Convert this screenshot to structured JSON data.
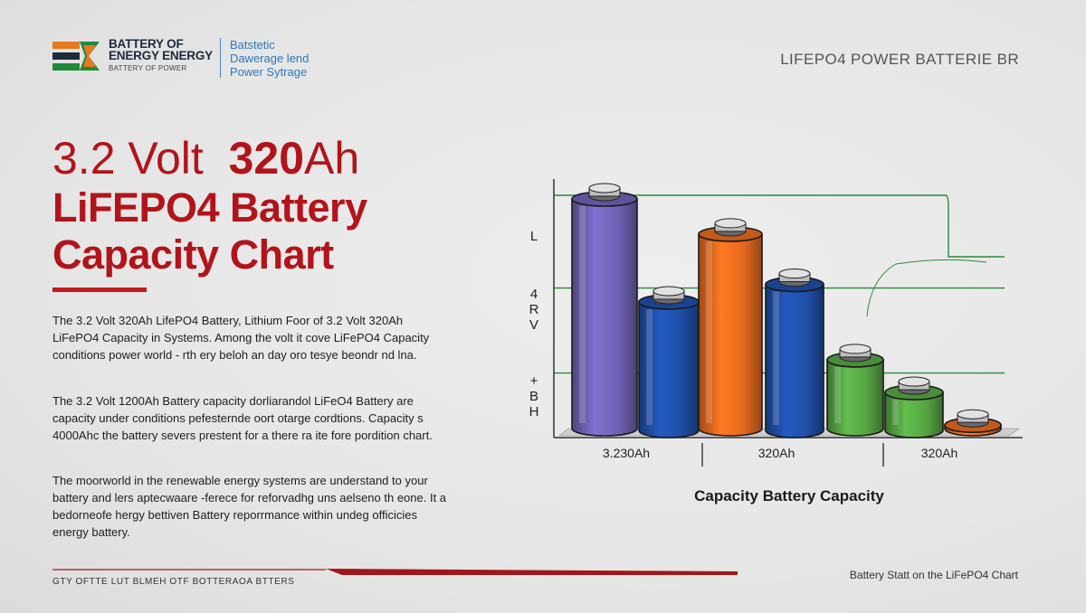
{
  "brand": {
    "name_line1": "BATTERY OF",
    "name_line2": "ENERGY ENERGY",
    "sub": "BATTERY OF POWER",
    "tagline": [
      "Batstetic",
      "Dawerage lend",
      "Power Sytrage"
    ],
    "colors": {
      "orange": "#e8781e",
      "green": "#1f8a3a",
      "navy": "#1c2a3c"
    }
  },
  "top_right_title": "LIFEPO4 POWER BATTERIE BR",
  "title": {
    "line1_a": "3.2 Volt",
    "line1_b": "320",
    "line1_c": "Ah",
    "line2": "LiFEPO4 Battery",
    "line3": "Capacity Chart",
    "color": "#b1141a"
  },
  "paragraphs": [
    "The 3.2 Volt 320Ah LifePO4 Battery, Lithium Foor of 3.2 Volt 320Ah LiFePO4 Capacity in Systems. Among the volt it cove LiFePO4 Capacity conditions power world - rth ery beloh an day oro tesye beondr nd lna.",
    "The 3.2 Volt 1200Ah Battery capacity dorliarandol LiFeO4 Battery are capacity under conditions pefesternde oort otarge cordtions. Capacity s 4000Ahc the battery severs prestent for a there ra ite fore pordition chart.",
    "The moorworld in the renewable energy systems are understand to your battery and lers aptecwaare -ferece for reforvadhg uns aelseno th eone. It a bedorneofe hergy bettiven Battery reporrmance within undeg officicies energy battery."
  ],
  "chart_data": {
    "type": "bar",
    "title": "",
    "xlabel": "Capacity Battery Capacity",
    "ylabel_ticks": [
      "L",
      "4 R V",
      "+ B H"
    ],
    "x_tick_labels": [
      "3.230Ah",
      "320Ah",
      "320Ah"
    ],
    "groups": 3,
    "bars": [
      {
        "group": 0,
        "value": 100,
        "color": "#6f63b6"
      },
      {
        "group": 0,
        "value": 59,
        "color": "#1f4fa8"
      },
      {
        "group": 1,
        "value": 86,
        "color": "#e66a1e"
      },
      {
        "group": 1,
        "value": 66,
        "color": "#1f4fa8"
      },
      {
        "group": 1,
        "value": 36,
        "color": "#56a544"
      },
      {
        "group": 2,
        "value": 23,
        "color": "#56a544"
      },
      {
        "group": 2,
        "value": 10,
        "color": "#e66a1e"
      }
    ],
    "reference_lines": [
      100,
      66,
      30
    ],
    "line_color": "#2a8a3c",
    "ylim": [
      0,
      100
    ]
  },
  "footer": {
    "left": "GTY OFTTE LUT   BLMEH OTF BOTTERAOA BTTERS",
    "right": "Battery Statt on the LiFePO4 Chart",
    "line_color": "#a0161b"
  }
}
